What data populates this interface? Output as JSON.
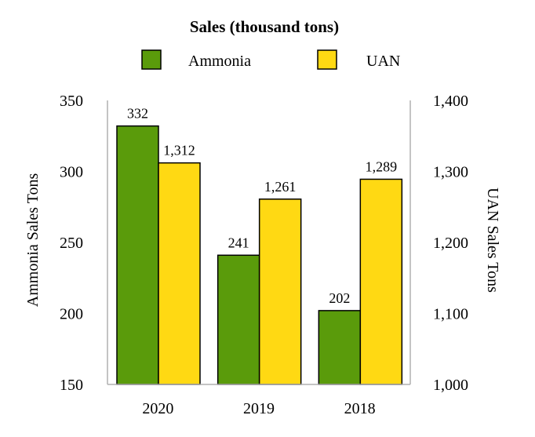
{
  "chart_data": {
    "type": "bar",
    "title": "Sales (thousand tons)",
    "categories": [
      "2020",
      "2019",
      "2018"
    ],
    "series": [
      {
        "name": "Ammonia",
        "axis": "left",
        "color": "#5a9b0b",
        "values": [
          332,
          241,
          202
        ],
        "labels": [
          "332",
          "241",
          "202"
        ]
      },
      {
        "name": "UAN",
        "axis": "right",
        "color": "#ffd913",
        "values": [
          1312,
          1261,
          1289
        ],
        "labels": [
          "1,312",
          "1,261",
          "1,289"
        ]
      }
    ],
    "left_axis": {
      "label": "Ammonia Sales Tons",
      "range": [
        150,
        350
      ],
      "ticks": [
        150,
        200,
        250,
        300,
        350
      ],
      "tick_labels": [
        "150",
        "200",
        "250",
        "300",
        "350"
      ]
    },
    "right_axis": {
      "label": "UAN Sales Tons",
      "range": [
        1000,
        1400
      ],
      "ticks": [
        1000,
        1100,
        1200,
        1300,
        1400
      ],
      "tick_labels": [
        "1,000",
        "1,100",
        "1,200",
        "1,300",
        "1,400"
      ]
    },
    "legend_position": "top-center",
    "grid": false
  }
}
